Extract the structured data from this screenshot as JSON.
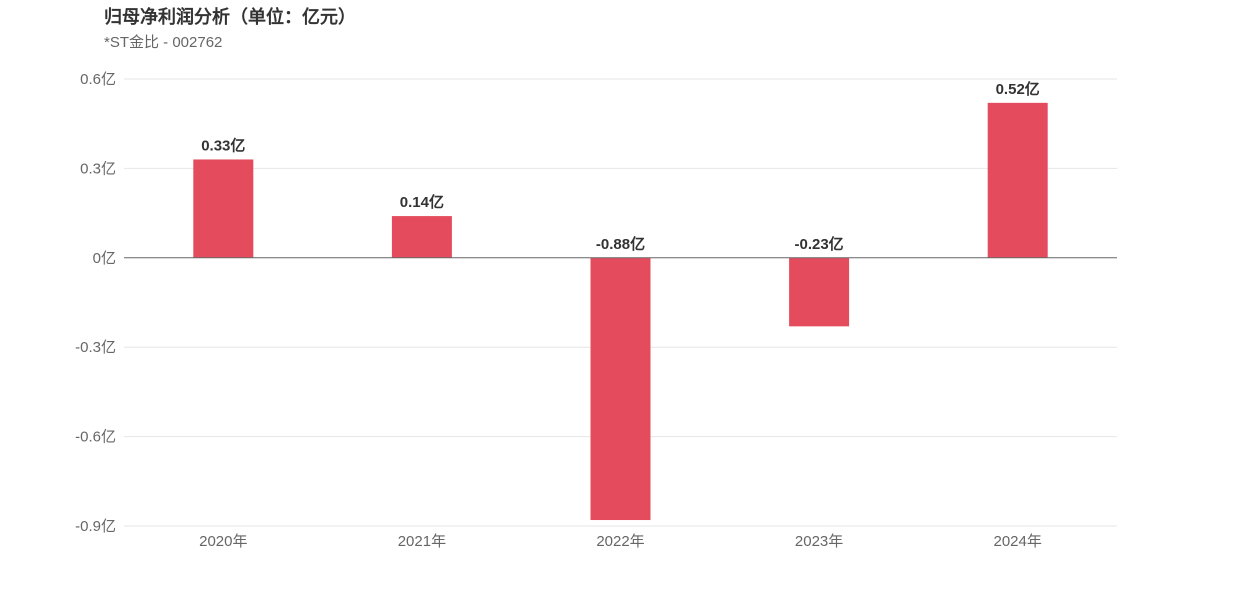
{
  "chart_data": {
    "type": "bar",
    "title": "归母净利润分析（单位：亿元）",
    "subtitle": "*ST金比 - 002762",
    "categories": [
      "2020年",
      "2021年",
      "2022年",
      "2023年",
      "2024年"
    ],
    "values": [
      0.33,
      0.14,
      -0.88,
      -0.23,
      0.52
    ],
    "data_labels": [
      "0.33亿",
      "0.14亿",
      "-0.88亿",
      "-0.23亿",
      "0.52亿"
    ],
    "yticks": [
      0.6,
      0.3,
      0,
      -0.3,
      -0.6,
      -0.9
    ],
    "ytick_labels": [
      "0.6亿",
      "0.3亿",
      "0亿",
      "-0.3亿",
      "-0.6亿",
      "-0.9亿"
    ],
    "ylim": [
      -0.9,
      0.6
    ],
    "grid": true,
    "legend": "none",
    "bar_color": "#e44c5e"
  }
}
